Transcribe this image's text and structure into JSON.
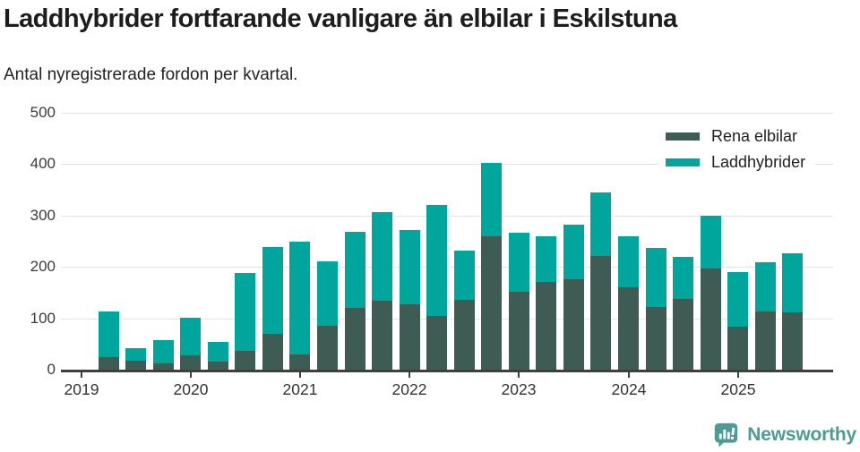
{
  "title": "Laddhybrider fortfarande vanligare än elbilar i Eskilstuna",
  "subtitle": "Antal nyregistrerade fordon per kvartal.",
  "footer": {
    "brand": "Newsworthy",
    "logo_icon": "bar-chart-speech-bubble-icon"
  },
  "colors": {
    "ev_dark": "#3e5c54",
    "hybrid_teal": "#00a69c",
    "brand_teal": "#4a9c95",
    "grid": "#e3e3e3",
    "axis": "#3f3f3f",
    "text_dark": "#1d1d1d"
  },
  "chart_data": {
    "type": "bar",
    "stacked": true,
    "title": "Laddhybrider fortfarande vanligare än elbilar i Eskilstuna",
    "subtitle": "Antal nyregistrerade fordon per kvartal.",
    "xlabel": "",
    "ylabel": "",
    "ylim": [
      0,
      500
    ],
    "yticks": [
      0,
      100,
      200,
      300,
      400,
      500
    ],
    "grid": "horizontal",
    "legend_position": "top-right",
    "categories": [
      "2019 Q1",
      "2019 Q2",
      "2019 Q3",
      "2019 Q4",
      "2020 Q1",
      "2020 Q2",
      "2020 Q3",
      "2020 Q4",
      "2021 Q1",
      "2021 Q2",
      "2021 Q3",
      "2021 Q4",
      "2022 Q1",
      "2022 Q2",
      "2022 Q3",
      "2022 Q4",
      "2023 Q1",
      "2023 Q2",
      "2023 Q3",
      "2023 Q4",
      "2024 Q1",
      "2024 Q2",
      "2024 Q3",
      "2024 Q4",
      "2025 Q1",
      "2025 Q2",
      "2025 Q3"
    ],
    "x_year_labels": [
      "2019",
      "2020",
      "2021",
      "2022",
      "2023",
      "2024",
      "2025"
    ],
    "series": [
      {
        "name": "Rena elbilar",
        "color": "#3e5c54",
        "values": [
          0,
          25,
          17,
          13,
          28,
          15,
          36,
          70,
          29,
          85,
          120,
          134,
          127,
          104,
          136,
          259,
          151,
          171,
          176,
          222,
          160,
          122,
          138,
          197,
          83,
          113,
          111
        ]
      },
      {
        "name": "Laddhybrider",
        "color": "#00a69c",
        "values": [
          0,
          88,
          24,
          46,
          73,
          38,
          151,
          169,
          220,
          126,
          148,
          173,
          145,
          216,
          96,
          142,
          115,
          88,
          106,
          124,
          99,
          115,
          82,
          103,
          106,
          95,
          115
        ]
      }
    ]
  }
}
